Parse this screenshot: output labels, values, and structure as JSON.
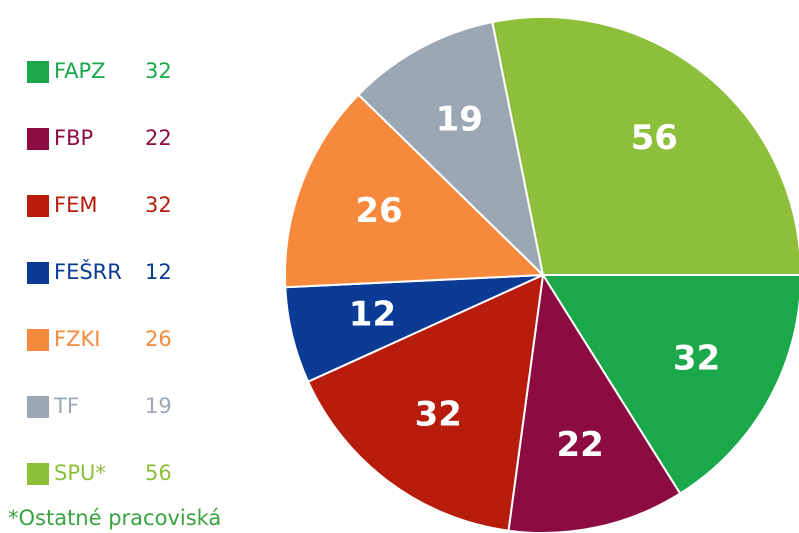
{
  "chart_data": {
    "type": "pie",
    "categories": [
      "FAPZ",
      "FBP",
      "FEM",
      "FEŠRR",
      "FZKI",
      "TF",
      "SPU*"
    ],
    "values": [
      32,
      22,
      32,
      12,
      26,
      19,
      56
    ],
    "colors": [
      "#1aa84a",
      "#8c0b40",
      "#b71c0d",
      "#0b3b95",
      "#f7893c",
      "#9ba8b3",
      "#8dbf3b"
    ],
    "note": "*Ostatné pracoviská"
  }
}
